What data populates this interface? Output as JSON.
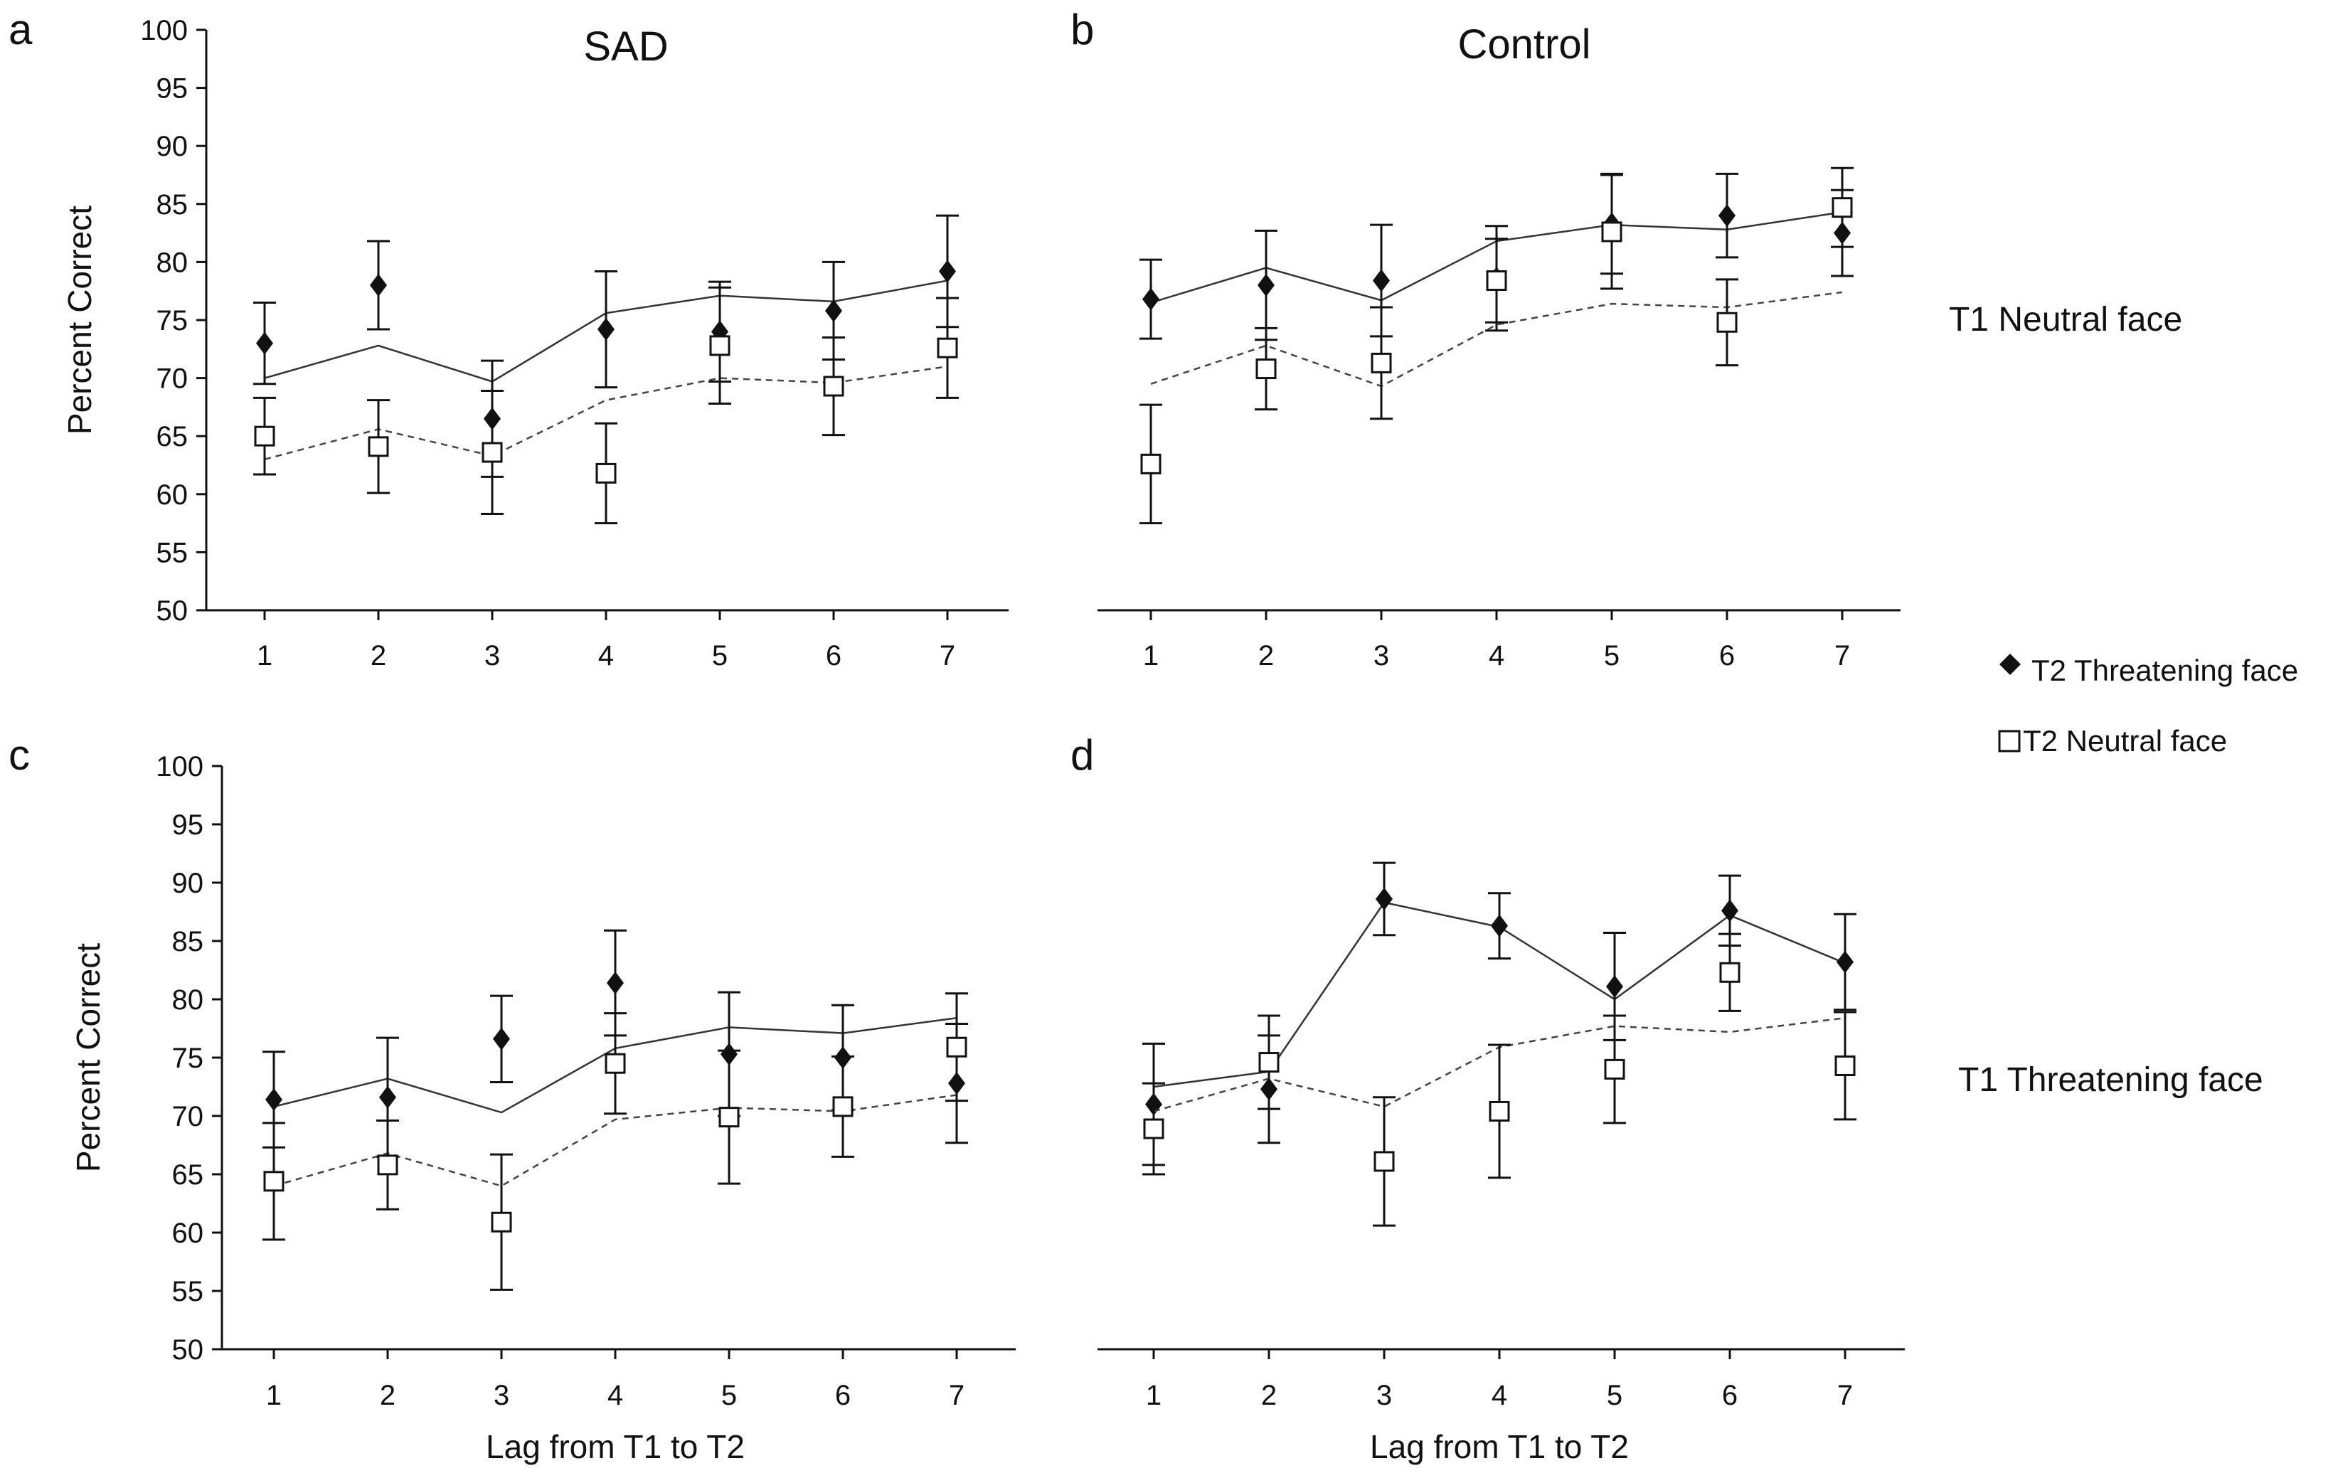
{
  "figure": {
    "group_titles": {
      "sad": "SAD",
      "control": "Control"
    },
    "row_labels": {
      "top": "T1 Neutral face",
      "bottom": "T1 Threatening face"
    },
    "legend": {
      "threatening": {
        "label": "T2 Threatening face",
        "icon": "filled-diamond-icon"
      },
      "neutral": {
        "label": "T2 Neutral face",
        "icon": "open-square-icon"
      }
    },
    "colors": {
      "ink": "#111111",
      "background": "#ffffff"
    }
  },
  "chart_data": [
    {
      "panel": "a",
      "type": "line",
      "title": "SAD",
      "xlabel": "",
      "ylabel": "Percent Correct",
      "x": [
        1,
        2,
        3,
        4,
        5,
        6,
        7
      ],
      "ylim": [
        50,
        100
      ],
      "yticks": [
        50,
        55,
        60,
        65,
        70,
        75,
        80,
        85,
        90,
        95,
        100
      ],
      "series": [
        {
          "name": "T2 Threatening face",
          "marker": "diamond",
          "values": [
            73,
            78,
            66.5,
            74.2,
            74,
            75.8,
            79.2
          ],
          "errors": [
            3.5,
            3.8,
            5,
            5,
            4.3,
            4.2,
            4.8
          ],
          "fit": [
            70,
            72.8,
            69.7,
            75.6,
            77.1,
            76.6,
            78.4
          ]
        },
        {
          "name": "T2 Neutral face",
          "marker": "square",
          "values": [
            65,
            64.1,
            63.6,
            61.8,
            72.8,
            69.3,
            72.6
          ],
          "errors": [
            3.3,
            4,
            5.3,
            4.3,
            5,
            4.2,
            4.3
          ],
          "fit": [
            63,
            65.6,
            63.3,
            68.1,
            70,
            69.6,
            71
          ]
        }
      ]
    },
    {
      "panel": "b",
      "type": "line",
      "title": "Control",
      "xlabel": "",
      "ylabel": "",
      "x": [
        1,
        2,
        3,
        4,
        5,
        6,
        7
      ],
      "ylim": [
        50,
        100
      ],
      "yticks": [],
      "series": [
        {
          "name": "T2 Threatening face",
          "marker": "diamond",
          "values": [
            76.8,
            78,
            78.4,
            78.6,
            83.3,
            84,
            82.5
          ],
          "errors": [
            3.4,
            4.7,
            4.8,
            4.5,
            4.3,
            3.6,
            3.7
          ],
          "fit": [
            76.5,
            79.5,
            76.7,
            81.8,
            83.2,
            82.8,
            84.3
          ]
        },
        {
          "name": "T2 Neutral face",
          "marker": "square",
          "values": [
            62.6,
            70.8,
            71.3,
            78.4,
            82.6,
            74.8,
            84.7
          ],
          "errors": [
            5.1,
            3.5,
            4.8,
            3.6,
            4.9,
            3.7,
            3.4
          ],
          "fit": [
            69.5,
            72.8,
            69.3,
            74.6,
            76.4,
            76.1,
            77.4
          ]
        }
      ]
    },
    {
      "panel": "c",
      "type": "line",
      "title": "",
      "xlabel": "Lag from T1 to T2",
      "ylabel": "Percent Correct",
      "x": [
        1,
        2,
        3,
        4,
        5,
        6,
        7
      ],
      "ylim": [
        50,
        100
      ],
      "yticks": [
        50,
        55,
        60,
        65,
        70,
        75,
        80,
        85,
        90,
        95,
        100
      ],
      "series": [
        {
          "name": "T2 Threatening face",
          "marker": "diamond",
          "values": [
            71.4,
            71.6,
            76.6,
            81.4,
            75.3,
            75,
            72.8
          ],
          "errors": [
            4.1,
            5.1,
            3.7,
            4.5,
            5.3,
            4.5,
            5.1
          ],
          "fit": [
            70.8,
            73.2,
            70.3,
            75.8,
            77.6,
            77.1,
            78.4
          ]
        },
        {
          "name": "T2 Neutral face",
          "marker": "square",
          "values": [
            64.4,
            65.8,
            60.9,
            74.5,
            69.9,
            70.8,
            75.9
          ],
          "errors": [
            5,
            3.8,
            5.8,
            4.3,
            5.7,
            4.3,
            4.6
          ],
          "fit": [
            64,
            66.8,
            64,
            69.7,
            70.7,
            70.4,
            71.8
          ]
        }
      ]
    },
    {
      "panel": "d",
      "type": "line",
      "title": "",
      "xlabel": "Lag from T1 to T2",
      "ylabel": "",
      "x": [
        1,
        2,
        3,
        4,
        5,
        6,
        7
      ],
      "ylim": [
        50,
        100
      ],
      "yticks": [],
      "series": [
        {
          "name": "T2 Threatening face",
          "marker": "diamond",
          "values": [
            71,
            72.3,
            88.6,
            86.3,
            81.1,
            87.6,
            83.2
          ],
          "errors": [
            5.2,
            4.6,
            3.1,
            2.8,
            4.6,
            3,
            4.1
          ],
          "fit": [
            72.5,
            73.8,
            88.3,
            86.2,
            80,
            87.2,
            83.1
          ]
        },
        {
          "name": "T2 Neutral face",
          "marker": "square",
          "values": [
            68.9,
            74.6,
            66.1,
            70.4,
            74,
            82.3,
            74.3
          ],
          "errors": [
            3.9,
            4,
            5.5,
            5.7,
            4.6,
            3.3,
            4.6
          ],
          "fit": [
            70.4,
            73.2,
            70.8,
            75.9,
            77.7,
            77.2,
            78.4
          ]
        }
      ]
    }
  ]
}
